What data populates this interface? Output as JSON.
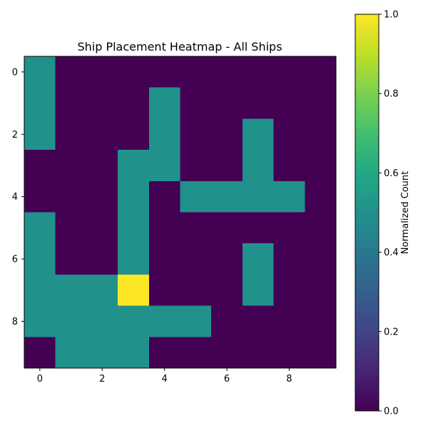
{
  "chart_data": {
    "type": "heatmap",
    "title": "Ship Placement Heatmap - All Ships",
    "rows": 10,
    "cols": 10,
    "x_ticks": [
      0,
      2,
      4,
      6,
      8
    ],
    "y_ticks": [
      0,
      2,
      4,
      6,
      8
    ],
    "values": [
      [
        0.5,
        0,
        0,
        0,
        0,
        0,
        0,
        0,
        0,
        0
      ],
      [
        0.5,
        0,
        0,
        0,
        0.5,
        0,
        0,
        0,
        0,
        0
      ],
      [
        0.5,
        0,
        0,
        0,
        0.5,
        0,
        0,
        0.5,
        0,
        0
      ],
      [
        0,
        0,
        0,
        0.5,
        0.5,
        0,
        0,
        0.5,
        0,
        0
      ],
      [
        0,
        0,
        0,
        0.5,
        0,
        0.5,
        0.5,
        0.5,
        0.5,
        0
      ],
      [
        0.5,
        0,
        0,
        0.5,
        0,
        0,
        0,
        0,
        0,
        0
      ],
      [
        0.5,
        0,
        0,
        0.5,
        0,
        0,
        0,
        0.5,
        0,
        0
      ],
      [
        0.5,
        0.5,
        0.5,
        1.0,
        0,
        0,
        0,
        0.5,
        0,
        0
      ],
      [
        0.5,
        0.5,
        0.5,
        0.5,
        0.5,
        0.5,
        0,
        0,
        0,
        0
      ],
      [
        0,
        0.5,
        0.5,
        0.5,
        0,
        0,
        0,
        0,
        0,
        0
      ]
    ],
    "colormap": "viridis",
    "colors": {
      "min": "#440154",
      "mid": "#21918c",
      "max": "#fde725"
    },
    "colorbar": {
      "label": "Normalized Count",
      "range": [
        0.0,
        1.0
      ],
      "ticks": [
        "0.0",
        "0.2",
        "0.4",
        "0.6",
        "0.8",
        "1.0"
      ]
    }
  }
}
